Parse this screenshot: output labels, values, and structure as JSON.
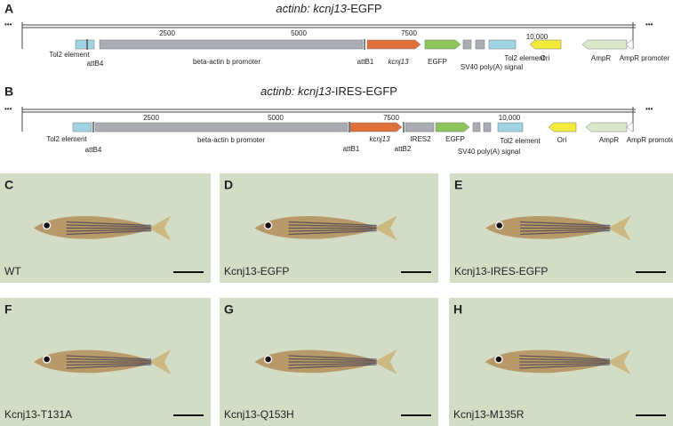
{
  "panels": [
    {
      "label": "A",
      "title": {
        "italic": "actinb: kcnj13",
        "plain": "-EGFP"
      },
      "ellipsis": "•••",
      "scale": [
        "2500",
        "5000",
        "7500",
        "10,000"
      ],
      "features": [
        "Tol2 element",
        "attB4",
        "beta-actin b promoter",
        "attB1",
        "kcnj13",
        "EGFP",
        "SV40 poly(A) signal",
        "Tol2 element",
        "Ori",
        "AmpR",
        "AmpR promoter"
      ]
    },
    {
      "label": "B",
      "title": {
        "italic": "actinb: kcnj13",
        "plain": "-IRES-EGFP"
      },
      "ellipsis": "•••",
      "scale": [
        "2500",
        "5000",
        "7500",
        "10,000"
      ],
      "features": [
        "Tol2 element",
        "attB4",
        "beta-actin b promoter",
        "attB1",
        "kcnj13",
        "attB2",
        "IRES2",
        "EGFP",
        "SV40 poly(A) signal",
        "Tol2 element",
        "Ori",
        "AmpR",
        "AmpR promoter"
      ]
    }
  ],
  "photos": [
    {
      "label": "C",
      "caption": "WT"
    },
    {
      "label": "D",
      "caption": "Kcnj13-EGFP"
    },
    {
      "label": "E",
      "caption": "Kcnj13-IRES-EGFP"
    },
    {
      "label": "F",
      "caption": "Kcnj13-T131A"
    },
    {
      "label": "G",
      "caption": "Kcnj13-Q153H"
    },
    {
      "label": "H",
      "caption": "Kcnj13-M135R"
    }
  ]
}
